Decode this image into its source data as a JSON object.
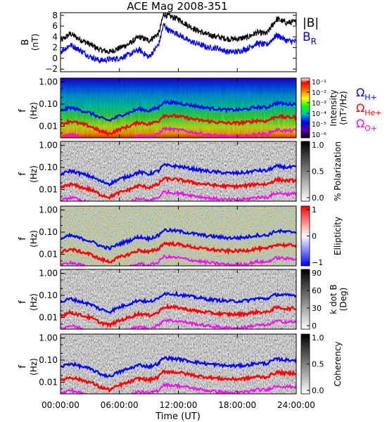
{
  "title": "ACE Mag 2008-351",
  "xaxis": {
    "label": "Time (UT)",
    "ticks": [
      "00:00:00",
      "06:00:00",
      "12:00:00",
      "18:00:00",
      "24:00:00"
    ],
    "range_hours": [
      0,
      24
    ]
  },
  "legend_top": {
    "b": "|B|",
    "br": "B",
    "br_sub": "R"
  },
  "legend_freq": [
    {
      "symbol": "Ω",
      "sub": "H+",
      "color": "#0000ff"
    },
    {
      "symbol": "Ω",
      "sub": "He+",
      "color": "#ff0000"
    },
    {
      "symbol": "Ω",
      "sub": "O+",
      "color": "#ff00ff"
    }
  ],
  "chart_data": [
    {
      "type": "line",
      "panel": "magnetic-field",
      "ylabel": "B",
      "yunit": "(nT)",
      "ylim": [
        -2.5,
        8.5
      ],
      "yticks": [
        "−2",
        "0",
        "2",
        "4",
        "6",
        "8"
      ],
      "ytick_values": [
        -2,
        0,
        2,
        4,
        6,
        8
      ],
      "x_hours": [
        0,
        1,
        2,
        3,
        4,
        5,
        6,
        7,
        8,
        9,
        10,
        10.5,
        11,
        12,
        13,
        14,
        15,
        16,
        17,
        18,
        19,
        20,
        21,
        22,
        22.5,
        23,
        24
      ],
      "series": [
        {
          "name": "|B|",
          "color": "#000000",
          "values": [
            3.2,
            4.6,
            3.5,
            2.6,
            1.6,
            1.2,
            1.9,
            2.7,
            4.0,
            3.3,
            4.6,
            8.2,
            7.9,
            7.3,
            6.1,
            5.1,
            4.4,
            4.0,
            3.6,
            3.6,
            3.9,
            4.8,
            4.6,
            7.3,
            7.0,
            6.6,
            6.8
          ]
        },
        {
          "name": "B",
          "color": "#0000ff",
          "values": [
            1.2,
            2.5,
            1.5,
            0.3,
            -0.4,
            -0.2,
            0.0,
            0.7,
            1.6,
            0.2,
            2.6,
            6.3,
            5.2,
            4.5,
            3.3,
            2.7,
            2.0,
            1.9,
            1.2,
            1.2,
            1.8,
            2.8,
            2.5,
            4.3,
            3.9,
            3.3,
            3.1
          ]
        }
      ]
    },
    {
      "type": "heatmap",
      "panel": "power-spectrum",
      "ylabel": "f",
      "yunit": "(Hz)",
      "yscale": "log",
      "ylim": [
        0.003,
        1.5
      ],
      "yticks": [
        "1.00",
        "0.10",
        "0.01"
      ],
      "colorbar": {
        "label": "Intensity",
        "unit": "(nT²/Hz)",
        "scale": "log",
        "ticks": [
          "10⁻¹",
          "10⁻²",
          "10⁻³",
          "10⁻⁴",
          "10⁻⁵",
          "10⁻⁶"
        ],
        "colors": [
          "#ffffff",
          "#ff0000",
          "#ff8000",
          "#ffff00",
          "#00ff00",
          "#00c0c0",
          "#0000ff",
          "#6000a0",
          "#000000"
        ]
      },
      "overlays": [
        "Ω H+",
        "Ω He+",
        "Ω O+"
      ]
    },
    {
      "type": "heatmap",
      "panel": "polarization",
      "ylabel": "f",
      "yunit": "(Hz)",
      "yscale": "log",
      "yticks": [
        "1.00",
        "0.10",
        "0.01"
      ],
      "colorbar": {
        "label": "% Polarization",
        "ticks": [
          "1.0",
          "0.5",
          "0.0"
        ],
        "range": [
          0,
          1
        ],
        "colors": [
          "#000000",
          "#ffffff"
        ]
      }
    },
    {
      "type": "heatmap",
      "panel": "ellipticity",
      "ylabel": "f",
      "yunit": "(Hz)",
      "yscale": "log",
      "yticks": [
        "1.00",
        "0.10",
        "0.01"
      ],
      "colorbar": {
        "label": "Ellipticity",
        "ticks": [
          "1",
          "0",
          "−1"
        ],
        "range": [
          -1,
          1
        ],
        "colors": [
          "#ff0000",
          "#ffffff",
          "#0000ff"
        ]
      }
    },
    {
      "type": "heatmap",
      "panel": "k-dot-b",
      "ylabel": "f",
      "yunit": "(Hz)",
      "yscale": "log",
      "yticks": [
        "1.00",
        "0.10",
        "0.01"
      ],
      "colorbar": {
        "label": "k dot B",
        "unit": "(Deg)",
        "ticks": [
          "90",
          "60",
          "30",
          "0"
        ],
        "range": [
          0,
          90
        ],
        "colors": [
          "#000000",
          "#ffffff"
        ]
      }
    },
    {
      "type": "heatmap",
      "panel": "coherency",
      "ylabel": "f",
      "yunit": "(Hz)",
      "yscale": "log",
      "yticks": [
        "1.00",
        "0.10",
        "0.01"
      ],
      "colorbar": {
        "label": "Coherency",
        "ticks": [
          "1.0",
          "0.5",
          "0.0"
        ],
        "range": [
          0,
          1
        ],
        "colors": [
          "#000000",
          "#ffffff"
        ]
      }
    }
  ],
  "gyro_lines": {
    "x_hours": [
      0,
      1,
      2,
      3,
      4,
      5,
      6,
      7,
      8,
      9,
      10,
      10.5,
      11,
      12,
      13,
      14,
      15,
      16,
      17,
      18,
      19,
      20,
      21,
      22,
      22.5,
      23,
      24
    ],
    "H+": [
      0.048,
      0.07,
      0.053,
      0.04,
      0.024,
      0.018,
      0.029,
      0.041,
      0.061,
      0.05,
      0.07,
      0.125,
      0.12,
      0.111,
      0.093,
      0.078,
      0.067,
      0.061,
      0.055,
      0.055,
      0.059,
      0.073,
      0.07,
      0.111,
      0.107,
      0.1,
      0.103
    ],
    "He+": [
      0.012,
      0.017,
      0.013,
      0.01,
      0.006,
      0.0045,
      0.0072,
      0.01,
      0.015,
      0.0125,
      0.017,
      0.031,
      0.03,
      0.028,
      0.023,
      0.019,
      0.017,
      0.015,
      0.014,
      0.014,
      0.015,
      0.018,
      0.017,
      0.028,
      0.027,
      0.025,
      0.026
    ],
    "O+": [
      0.003,
      0.0044,
      0.0033,
      0.0025,
      0.0015,
      0.0011,
      0.0018,
      0.0026,
      0.0038,
      0.0031,
      0.0044,
      0.0078,
      0.0075,
      0.0069,
      0.0058,
      0.0049,
      0.0042,
      0.0038,
      0.0034,
      0.0034,
      0.0037,
      0.0046,
      0.0044,
      0.0069,
      0.0067,
      0.0063,
      0.0064
    ]
  }
}
